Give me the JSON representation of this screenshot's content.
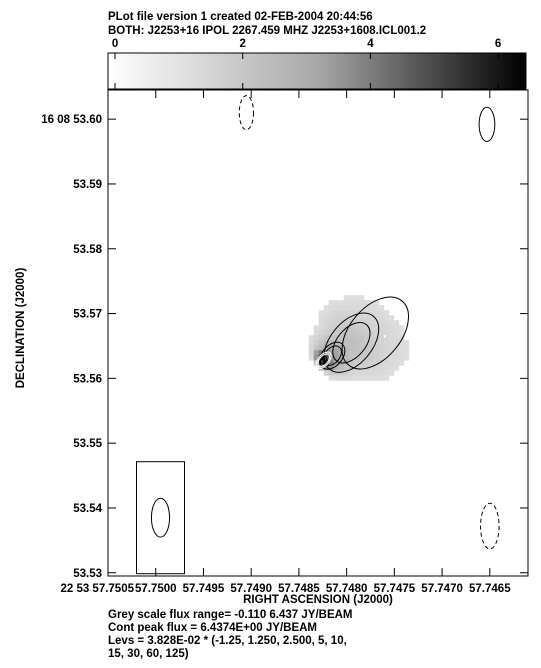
{
  "header": {
    "line1": "PLot file version 1  created 02-FEB-2004 20:44:56",
    "line2": "BOTH: J2253+16  IPOL  2267.459 MHZ  J2253+1608.ICL001.2"
  },
  "colorbar": {
    "ticks": [
      {
        "value": 0,
        "label": "0"
      },
      {
        "value": 2,
        "label": "2"
      },
      {
        "value": 4,
        "label": "4"
      },
      {
        "value": 6,
        "label": "6"
      }
    ],
    "min": -0.11,
    "max": 6.437
  },
  "footer": {
    "line1": "Grey scale flux range= -0.110 6.437 JY/BEAM",
    "line2": "Cont peak flux =  6.4374E+00 JY/BEAM",
    "line3": "Levs = 3.828E-02 * (-1.25, 1.250, 2.500, 5, 10,",
    "line4": "15, 30, 60, 125)"
  },
  "chart_data": {
    "type": "heatmap",
    "title": "PLot file version 1  created 02-FEB-2004 20:44:56",
    "subtitle": "BOTH: J2253+16  IPOL  2267.459 MHZ  J2253+1608.ICL001.2",
    "xlabel": "RIGHT ASCENSION (J2000)",
    "ylabel": "DECLINATION (J2000)",
    "xlim": [
      57.7505,
      57.7461
    ],
    "ylim": [
      53.5295,
      53.6045
    ],
    "x_ticks": [
      {
        "value": 57.7505,
        "label": "22 53 57.7505"
      },
      {
        "value": 57.75,
        "label": "57.7500"
      },
      {
        "value": 57.7495,
        "label": "57.7495"
      },
      {
        "value": 57.749,
        "label": "57.7490"
      },
      {
        "value": 57.7485,
        "label": "57.7485"
      },
      {
        "value": 57.748,
        "label": "57.7480"
      },
      {
        "value": 57.7475,
        "label": "57.7475"
      },
      {
        "value": 57.747,
        "label": "57.7470"
      },
      {
        "value": 57.7465,
        "label": "57.7465"
      }
    ],
    "y_ticks": [
      {
        "value": 53.6,
        "label": "16 08 53.60"
      },
      {
        "value": 53.59,
        "label": "53.59"
      },
      {
        "value": 53.58,
        "label": "53.58"
      },
      {
        "value": 53.57,
        "label": "53.57"
      },
      {
        "value": 53.56,
        "label": "53.56"
      },
      {
        "value": 53.55,
        "label": "53.55"
      },
      {
        "value": 53.54,
        "label": "53.54"
      },
      {
        "value": 53.53,
        "label": "53.53"
      }
    ],
    "grey_range": [
      -0.11,
      6.437
    ],
    "peak_flux": 6.4374,
    "contour_base": 0.03828,
    "contour_multipliers": [
      -1.25,
      1.25,
      2.5,
      5,
      10,
      15,
      30,
      60,
      125
    ],
    "source": {
      "ra": 57.74824,
      "dec": 53.5628,
      "peak": 6.4374,
      "pa_deg": 40,
      "components": [
        {
          "ra": 57.74824,
          "dec": 53.5628,
          "amp": 6.4374,
          "major": 0.0016,
          "minor": 0.0009,
          "pa_deg": 40
        },
        {
          "ra": 57.74815,
          "dec": 53.5635,
          "amp": 0.9,
          "major": 0.0036,
          "minor": 0.0024,
          "pa_deg": 40
        },
        {
          "ra": 57.74795,
          "dec": 53.5655,
          "amp": 0.35,
          "major": 0.0066,
          "minor": 0.004,
          "pa_deg": 40
        },
        {
          "ra": 57.7477,
          "dec": 53.567,
          "amp": 0.12,
          "major": 0.0095,
          "minor": 0.0058,
          "pa_deg": 40
        }
      ],
      "secondary_peak": {
        "ra": 57.7476,
        "dec": 53.5665
      }
    },
    "negative_contours": [
      {
        "ra": 57.74905,
        "dec": 53.601,
        "major": 0.0024,
        "minor": 0.001,
        "pa_deg": 0
      },
      {
        "ra": 57.7465,
        "dec": 53.5372,
        "major": 0.0032,
        "minor": 0.0013,
        "pa_deg": 0
      }
    ],
    "positive_blobs": [
      {
        "ra": 57.74653,
        "dec": 53.5992,
        "major": 0.0024,
        "minor": 0.0011,
        "pa_deg": 0
      }
    ],
    "beam": {
      "ra": 57.74995,
      "dec": 53.5385,
      "major": 0.006,
      "minor": 0.0028,
      "pa_deg": 0
    }
  }
}
